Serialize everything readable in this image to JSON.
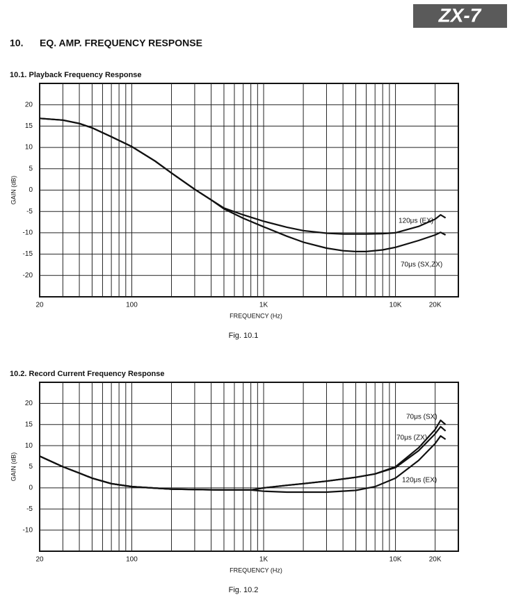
{
  "header": {
    "badge": "ZX-7",
    "number": "10.",
    "title": "EQ. AMP. FREQUENCY RESPONSE"
  },
  "chart_data": [
    {
      "type": "line",
      "title": "10.1.  Playback Frequency Response",
      "xlabel": "FREQUENCY (Hz)",
      "ylabel": "GAIN (dB)",
      "caption": "Fig. 10.1",
      "xscale": "log",
      "grid": true,
      "xlim": [
        20,
        30000
      ],
      "ylim": [
        -25,
        25
      ],
      "xticks": [
        20,
        100,
        {
          "value": 1000,
          "label": "1K"
        },
        {
          "value": 10000,
          "label": "10K"
        },
        {
          "value": 20000,
          "label": "20K"
        }
      ],
      "xgrid": [
        30,
        40,
        50,
        60,
        70,
        80,
        90,
        200,
        300,
        400,
        500,
        600,
        700,
        800,
        900,
        2000,
        3000,
        4000,
        5000,
        6000,
        7000,
        8000,
        9000
      ],
      "yticks": [
        -20,
        -15,
        -10,
        -5,
        0,
        5,
        10,
        15,
        20
      ],
      "x": [
        20,
        30,
        40,
        50,
        70,
        100,
        150,
        200,
        300,
        400,
        500,
        700,
        1000,
        1500,
        2000,
        3000,
        4000,
        5000,
        6000,
        8000,
        10000,
        15000,
        20000,
        22000,
        24000
      ],
      "series": [
        {
          "name": "120μs (EX)",
          "color": "#111111",
          "values": [
            16.8,
            16.4,
            15.6,
            14.6,
            12.5,
            10.2,
            6.8,
            4.0,
            0.2,
            -2.3,
            -4.2,
            -5.8,
            -7.3,
            -8.7,
            -9.5,
            -10.1,
            -10.3,
            -10.3,
            -10.3,
            -10.2,
            -10.0,
            -8.5,
            -6.8,
            -5.8,
            -6.5
          ]
        },
        {
          "name": "70μs (SX,ZX)",
          "color": "#111111",
          "values": [
            16.8,
            16.4,
            15.6,
            14.6,
            12.5,
            10.2,
            6.8,
            4.0,
            0.2,
            -2.3,
            -4.4,
            -6.6,
            -8.6,
            -10.8,
            -12.2,
            -13.6,
            -14.2,
            -14.4,
            -14.4,
            -14.0,
            -13.4,
            -11.8,
            -10.5,
            -9.9,
            -10.5
          ]
        }
      ]
    },
    {
      "type": "line",
      "title": "10.2.  Record Current Frequency Response",
      "xlabel": "FREQUENCY (Hz)",
      "ylabel": "GAIN (dB)",
      "caption": "Fig. 10.2",
      "xscale": "log",
      "grid": true,
      "xlim": [
        20,
        30000
      ],
      "ylim": [
        -15,
        25
      ],
      "xticks": [
        20,
        100,
        {
          "value": 1000,
          "label": "1K"
        },
        {
          "value": 10000,
          "label": "10K"
        },
        {
          "value": 20000,
          "label": "20K"
        }
      ],
      "xgrid": [
        30,
        40,
        50,
        60,
        70,
        80,
        90,
        200,
        300,
        400,
        500,
        600,
        700,
        800,
        900,
        2000,
        3000,
        4000,
        5000,
        6000,
        7000,
        8000,
        9000
      ],
      "yticks": [
        -10,
        -5,
        0,
        5,
        10,
        15,
        20
      ],
      "x": [
        20,
        30,
        40,
        50,
        70,
        100,
        200,
        500,
        800,
        1000,
        1500,
        2000,
        3000,
        5000,
        7000,
        10000,
        15000,
        20000,
        22000,
        24000
      ],
      "series": [
        {
          "name": "70μs (SX)",
          "color": "#111111",
          "values": [
            7.5,
            5.0,
            3.5,
            2.3,
            1.0,
            0.3,
            -0.3,
            -0.5,
            -0.5,
            0.0,
            0.6,
            1.0,
            1.6,
            2.5,
            3.3,
            5.0,
            9.5,
            13.8,
            16.0,
            15.0
          ]
        },
        {
          "name": "70μs (ZX)",
          "color": "#111111",
          "values": [
            7.5,
            5.0,
            3.5,
            2.3,
            1.0,
            0.3,
            -0.3,
            -0.5,
            -0.5,
            0.0,
            0.6,
            1.0,
            1.6,
            2.5,
            3.3,
            4.8,
            8.8,
            12.8,
            14.5,
            13.5
          ]
        },
        {
          "name": "120μs (EX)",
          "color": "#111111",
          "values": [
            7.5,
            5.0,
            3.5,
            2.3,
            1.0,
            0.3,
            -0.3,
            -0.5,
            -0.5,
            -0.8,
            -1.0,
            -1.0,
            -1.0,
            -0.6,
            0.3,
            2.3,
            6.5,
            10.5,
            12.3,
            11.5
          ]
        }
      ]
    }
  ]
}
